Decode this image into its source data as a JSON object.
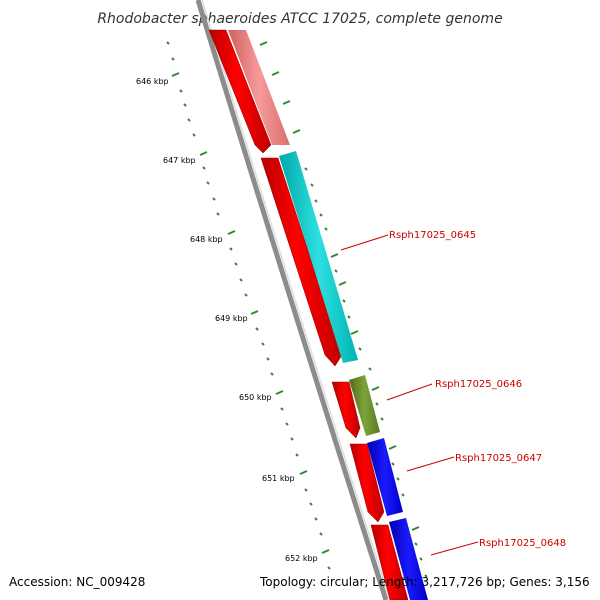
{
  "title": "Rhodobacter sphaeroides ATCC 17025, complete genome",
  "accession_text": "Accession: NC_009428",
  "summary_text": "Topology: circular; Length: 3,217,726 bp; Genes: 3,156",
  "ruler_labels": [
    "646 kbp",
    "647 kbp",
    "648 kbp",
    "649 kbp",
    "650 kbp",
    "651 kbp",
    "652 kbp"
  ],
  "gene_labels": [
    "Rsph17025_0645",
    "Rsph17025_0646",
    "Rsph17025_0647",
    "Rsph17025_0648"
  ],
  "colors": {
    "cds_forward": "#ff0000",
    "feature_pink": "#f08080",
    "feature_cyan": "#00cccc",
    "feature_olive": "#6b8e23",
    "feature_blue": "#0000ee",
    "ruler_tick": "#2e8b2e",
    "label_red": "#cc0000",
    "backbone": "#8c8c8c"
  }
}
